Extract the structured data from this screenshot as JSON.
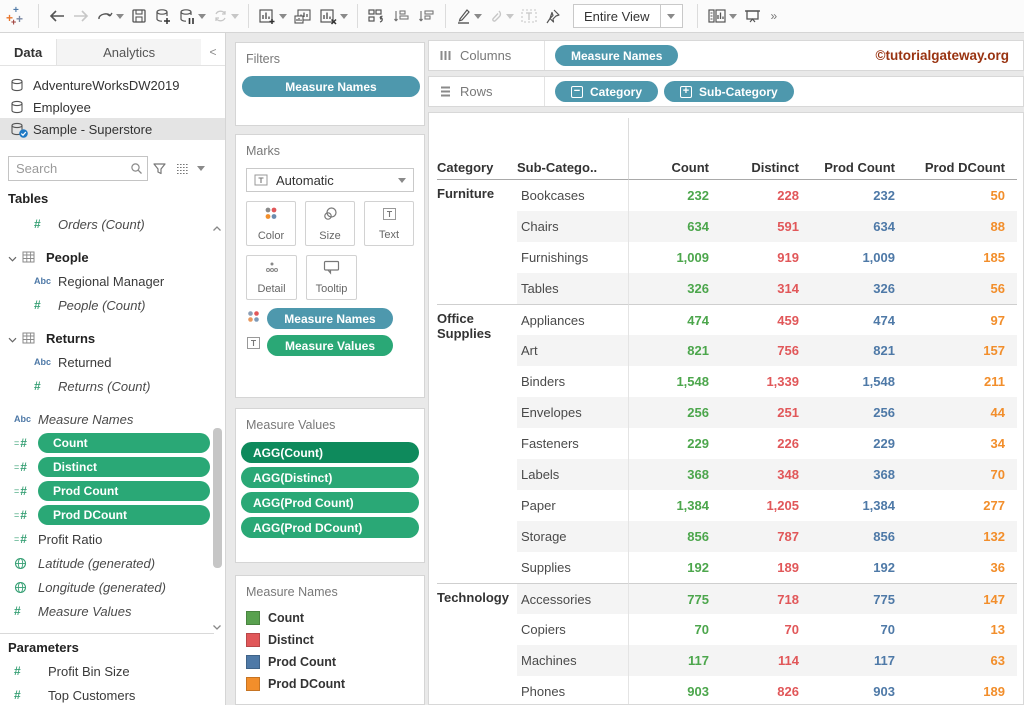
{
  "toolbar": {
    "view_mode": "Entire View",
    "overflow": "»",
    "icon_names": [
      "tableau-logo",
      "back-arrow-icon",
      "forward-arrow-icon",
      "replay-icon",
      "save-icon",
      "add-datasource-icon",
      "pause-datasource-icon",
      "refresh-datasource-icon",
      "new-worksheet-icon",
      "duplicate-sheet-icon",
      "clear-sheet-icon",
      "swap-rows-columns-icon",
      "sort-ascending-icon",
      "sort-descending-icon",
      "highlight-icon",
      "attach-icon",
      "text-label-icon",
      "pin-icon",
      "fit-selector",
      "device-preview-icon",
      "presentation-mode-icon"
    ]
  },
  "sidebar": {
    "tabs": {
      "data": "Data",
      "analytics": "Analytics",
      "collapse": "<"
    },
    "datasources": [
      {
        "label": "AdventureWorksDW2019",
        "selected": false
      },
      {
        "label": "Employee",
        "selected": false
      },
      {
        "label": "Sample - Superstore",
        "selected": true
      }
    ],
    "search_placeholder": "Search",
    "tables_label": "Tables",
    "fields": [
      {
        "icon": "hash",
        "label": "Orders (Count)",
        "italic": true,
        "indent": 1
      },
      {
        "icon": "table",
        "label": "People",
        "group": true,
        "gap": true
      },
      {
        "icon": "abc",
        "label": "Regional Manager",
        "indent": 1
      },
      {
        "icon": "hash",
        "label": "People (Count)",
        "italic": true,
        "indent": 1
      },
      {
        "icon": "table",
        "label": "Returns",
        "group": true,
        "gap": true
      },
      {
        "icon": "abc",
        "label": "Returned",
        "indent": 1
      },
      {
        "icon": "hash",
        "label": "Returns (Count)",
        "italic": true,
        "indent": 1
      },
      {
        "icon": "abc",
        "label": "Measure Names",
        "italic": true,
        "gap": true
      },
      {
        "icon": "calc",
        "label": "Count",
        "pill": true
      },
      {
        "icon": "calc",
        "label": "Distinct",
        "pill": true
      },
      {
        "icon": "calc",
        "label": "Prod Count",
        "pill": true
      },
      {
        "icon": "calc",
        "label": "Prod DCount",
        "pill": true
      },
      {
        "icon": "calc",
        "label": "Profit Ratio"
      },
      {
        "icon": "globe",
        "label": "Latitude (generated)",
        "italic": true
      },
      {
        "icon": "globe",
        "label": "Longitude (generated)",
        "italic": true
      },
      {
        "icon": "hash",
        "label": "Measure Values",
        "italic": true
      }
    ],
    "parameters_label": "Parameters",
    "parameters": [
      {
        "icon": "hash",
        "label": "Profit Bin Size"
      },
      {
        "icon": "hash",
        "label": "Top Customers"
      }
    ]
  },
  "filters": {
    "title": "Filters",
    "pills": [
      {
        "label": "Measure Names",
        "color": "blue"
      }
    ]
  },
  "marks": {
    "title": "Marks",
    "mark_type": "Automatic",
    "buttons_row1": [
      {
        "label": "Color",
        "icon": "color-icon"
      },
      {
        "label": "Size",
        "icon": "size-icon"
      },
      {
        "label": "Text",
        "icon": "text-icon"
      }
    ],
    "buttons_row2": [
      {
        "label": "Detail",
        "icon": "detail-icon"
      },
      {
        "label": "Tooltip",
        "icon": "tooltip-icon"
      }
    ],
    "pills": [
      {
        "label": "Measure Names",
        "color": "blue",
        "icon": "color-dots-icon"
      },
      {
        "label": "Measure Values",
        "color": "green",
        "icon": "text-box-icon"
      }
    ]
  },
  "measure_values": {
    "title": "Measure Values",
    "pills": [
      {
        "label": "AGG(Count)",
        "variant": "dgreen"
      },
      {
        "label": "AGG(Distinct)",
        "variant": "green"
      },
      {
        "label": "AGG(Prod Count)",
        "variant": "green"
      },
      {
        "label": "AGG(Prod DCount)",
        "variant": "green"
      }
    ]
  },
  "legend": {
    "title": "Measure Names",
    "items": [
      {
        "label": "Count",
        "color": "#59a14f"
      },
      {
        "label": "Distinct",
        "color": "#e15759"
      },
      {
        "label": "Prod Count",
        "color": "#4e79a7"
      },
      {
        "label": "Prod DCount",
        "color": "#f28e2b"
      }
    ]
  },
  "shelves": {
    "columns_label": "Columns",
    "columns_pills": [
      {
        "label": "Measure Names"
      }
    ],
    "rows_label": "Rows",
    "rows_pills": [
      {
        "label": "Category",
        "box": "−"
      },
      {
        "label": "Sub-Category",
        "box": "+"
      }
    ]
  },
  "watermark": {
    "text": "©tutorialgateway.org",
    "color": "#993311"
  },
  "colors": {
    "pill_blue": "#4e98ad",
    "pill_green": "#2aa876",
    "pill_dark_green": "#0e8a5c",
    "selected_row": "#e4e4e4"
  },
  "chart_data": {
    "type": "table",
    "columns": [
      "Category",
      "Sub-Catego..",
      "Count",
      "Distinct",
      "Prod Count",
      "Prod DCount"
    ],
    "value_colors": [
      "#4ca64c",
      "#e15759",
      "#4e79a7",
      "#f28e2b"
    ],
    "groups": [
      {
        "category": "Furniture",
        "rows": [
          [
            "Bookcases",
            "232",
            "228",
            "232",
            "50"
          ],
          [
            "Chairs",
            "634",
            "591",
            "634",
            "88"
          ],
          [
            "Furnishings",
            "1,009",
            "919",
            "1,009",
            "185"
          ],
          [
            "Tables",
            "326",
            "314",
            "326",
            "56"
          ]
        ]
      },
      {
        "category": "Office Supplies",
        "rows": [
          [
            "Appliances",
            "474",
            "459",
            "474",
            "97"
          ],
          [
            "Art",
            "821",
            "756",
            "821",
            "157"
          ],
          [
            "Binders",
            "1,548",
            "1,339",
            "1,548",
            "211"
          ],
          [
            "Envelopes",
            "256",
            "251",
            "256",
            "44"
          ],
          [
            "Fasteners",
            "229",
            "226",
            "229",
            "34"
          ],
          [
            "Labels",
            "368",
            "348",
            "368",
            "70"
          ],
          [
            "Paper",
            "1,384",
            "1,205",
            "1,384",
            "277"
          ],
          [
            "Storage",
            "856",
            "787",
            "856",
            "132"
          ],
          [
            "Supplies",
            "192",
            "189",
            "192",
            "36"
          ]
        ]
      },
      {
        "category": "Technology",
        "rows": [
          [
            "Accessories",
            "775",
            "718",
            "775",
            "147"
          ],
          [
            "Copiers",
            "70",
            "70",
            "70",
            "13"
          ],
          [
            "Machines",
            "117",
            "114",
            "117",
            "63"
          ],
          [
            "Phones",
            "903",
            "826",
            "903",
            "189"
          ]
        ]
      }
    ]
  }
}
